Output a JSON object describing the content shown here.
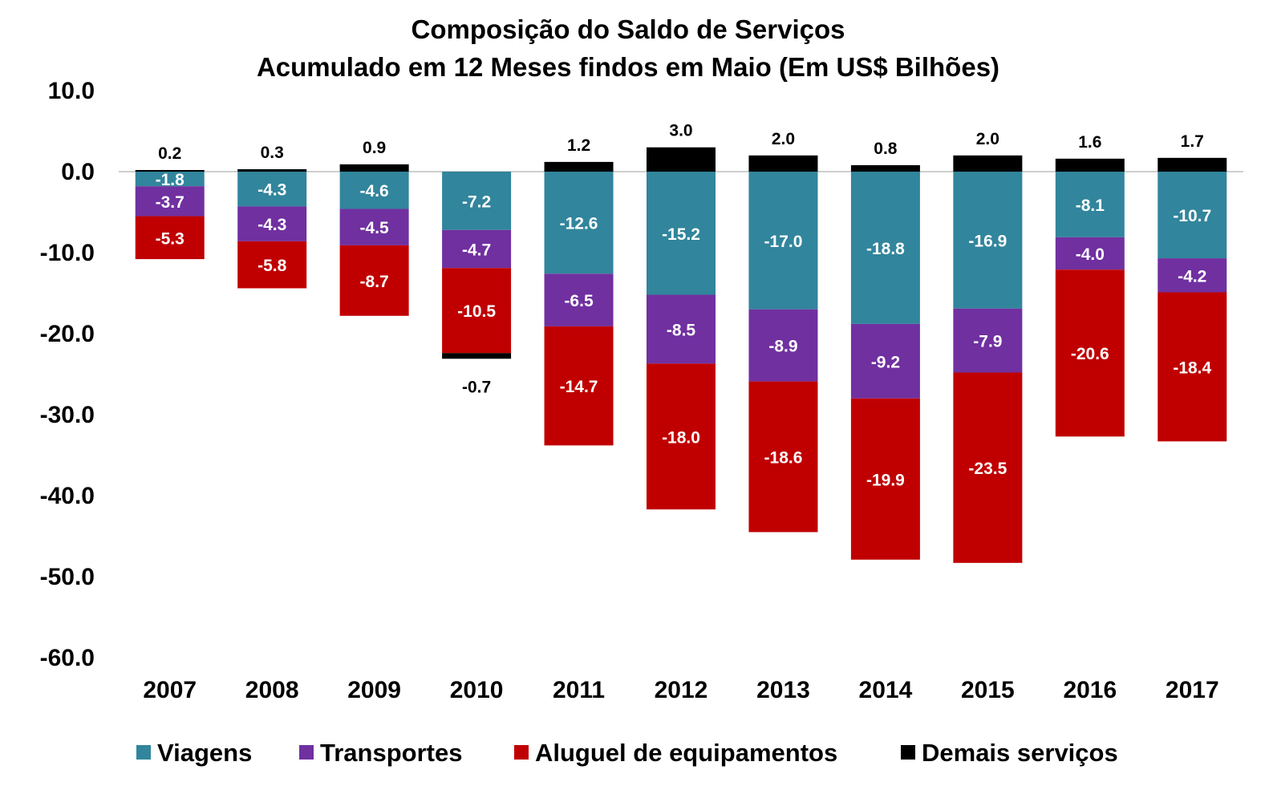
{
  "chart_data": {
    "type": "bar",
    "stacked": true,
    "title": "Composição do Saldo de Serviços",
    "subtitle": "Acumulado em 12 Meses findos em Maio (Em US$ Bilhões)",
    "xlabel": "",
    "ylabel": "",
    "ylim": [
      -60,
      10
    ],
    "yticks": [
      "10.0",
      "0.0",
      "-10.0",
      "-20.0",
      "-30.0",
      "-40.0",
      "-50.0",
      "-60.0"
    ],
    "grid": false,
    "legend_position": "bottom",
    "categories": [
      "2007",
      "2008",
      "2009",
      "2010",
      "2011",
      "2012",
      "2013",
      "2014",
      "2015",
      "2016",
      "2017"
    ],
    "series": [
      {
        "name": "Viagens",
        "color": "#31859C",
        "label_color": "#ffffff",
        "values": [
          -1.8,
          -4.3,
          -4.6,
          -7.2,
          -12.6,
          -15.2,
          -17.0,
          -18.8,
          -16.9,
          -8.1,
          -10.7
        ],
        "labels": [
          "-1.8",
          "-4.3",
          "-4.6",
          "-7.2",
          "-12.6",
          "-15.2",
          "-17.0",
          "-18.8",
          "-16.9",
          "-8.1",
          "-10.7"
        ]
      },
      {
        "name": "Transportes",
        "color": "#7030A0",
        "label_color": "#ffffff",
        "values": [
          -3.7,
          -4.3,
          -4.5,
          -4.7,
          -6.5,
          -8.5,
          -8.9,
          -9.2,
          -7.9,
          -4.0,
          -4.2
        ],
        "labels": [
          "-3.7",
          "-4.3",
          "-4.5",
          "-4.7",
          "-6.5",
          "-8.5",
          "-8.9",
          "-9.2",
          "-7.9",
          "-4.0",
          "-4.2"
        ]
      },
      {
        "name": "Aluguel de equipamentos",
        "color": "#C00000",
        "label_color": "#ffffff",
        "values": [
          -5.3,
          -5.8,
          -8.7,
          -10.5,
          -14.7,
          -18.0,
          -18.6,
          -19.9,
          -23.5,
          -20.6,
          -18.4
        ],
        "labels": [
          "-5.3",
          "-5.8",
          "-8.7",
          "-10.5",
          "-14.7",
          "-18.0",
          "-18.6",
          "-19.9",
          "-23.5",
          "-20.6",
          "-18.4"
        ]
      },
      {
        "name": "Demais serviços",
        "color": "#000000",
        "label_color": "#000000",
        "values": [
          0.2,
          0.3,
          0.9,
          -0.7,
          1.2,
          3.0,
          2.0,
          0.8,
          2.0,
          1.6,
          1.7
        ],
        "labels": [
          "0.2",
          "0.3",
          "0.9",
          "-0.7",
          "1.2",
          "3.0",
          "2.0",
          "0.8",
          "2.0",
          "1.6",
          "1.7"
        ]
      }
    ]
  }
}
